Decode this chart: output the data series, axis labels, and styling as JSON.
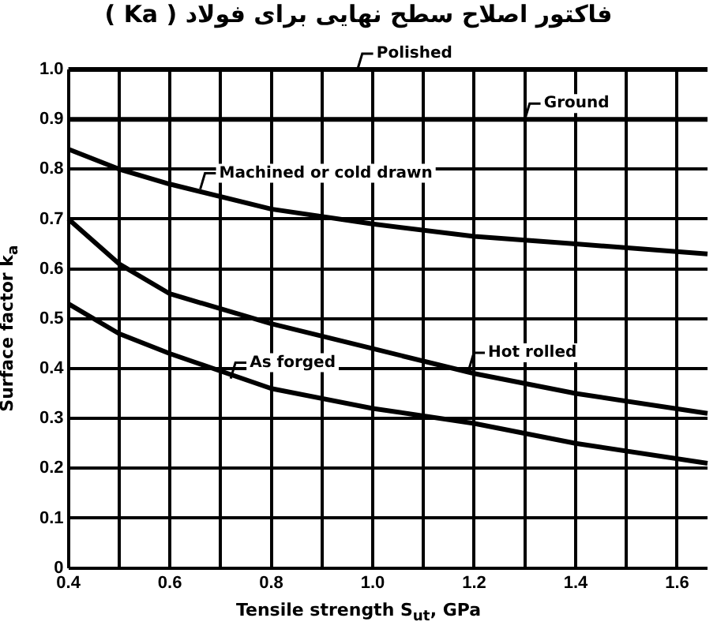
{
  "chart_data": {
    "type": "line",
    "title": "فاکتور اصلاح سطح نهایی برای فولاد ( Ka )",
    "xlabel": "Tensile strength S$_{ut}$, GPa",
    "ylabel": "Surface factor k$_{a}$",
    "series": [
      {
        "color": "#000000",
        "x": [
          0.4,
          1.66
        ],
        "values": [
          1.0,
          1.0
        ]
      },
      {
        "color": "#000000",
        "x": [
          0.4,
          1.66
        ],
        "values": [
          0.9,
          0.9
        ]
      },
      {
        "color": "#000000",
        "x": [
          0.4,
          0.5,
          0.6,
          0.8,
          1.0,
          1.2,
          1.4,
          1.66
        ],
        "values": [
          0.84,
          0.8,
          0.77,
          0.72,
          0.69,
          0.665,
          0.65,
          0.63
        ]
      },
      {
        "color": "#000000",
        "x": [
          0.4,
          0.5,
          0.6,
          0.8,
          1.0,
          1.2,
          1.4,
          1.66
        ],
        "values": [
          0.7,
          0.61,
          0.55,
          0.49,
          0.44,
          0.39,
          0.35,
          0.31
        ]
      },
      {
        "color": "#000000",
        "x": [
          0.4,
          0.5,
          0.6,
          0.8,
          1.0,
          1.2,
          1.4,
          1.66
        ],
        "values": [
          0.53,
          0.47,
          0.43,
          0.36,
          0.32,
          0.29,
          0.25,
          0.21
        ]
      }
    ],
    "annotations": [
      {
        "text": "Polished",
        "x": 0.97,
        "y": 1.0
      },
      {
        "text": "Ground",
        "x": 1.3,
        "y": 0.9
      },
      {
        "text": "Machined or cold drawn",
        "x": 0.66,
        "y": 0.76
      },
      {
        "text": "Hot rolled",
        "x": 1.19,
        "y": 0.4
      },
      {
        "text": "As forged",
        "x": 0.72,
        "y": 0.38
      }
    ],
    "xlim": [
      0.4,
      1.66
    ],
    "xticks": [
      0.4,
      {
        "value": 0.5,
        "label": null
      },
      0.6,
      {
        "value": 0.7,
        "label": null
      },
      0.8,
      {
        "value": 0.9,
        "label": null
      },
      {
        "value": 1.0,
        "label": "1.0"
      },
      {
        "value": 1.1,
        "label": null
      },
      1.2,
      {
        "value": 1.3,
        "label": null
      },
      1.4,
      {
        "value": 1.5,
        "label": null
      },
      1.6
    ],
    "ylim": [
      0,
      1.0
    ],
    "yticks": [
      {
        "value": 0,
        "label": "0"
      },
      0.1,
      0.2,
      0.3,
      0.4,
      0.5,
      0.6,
      0.7,
      0.8,
      0.9,
      {
        "value": 1.0,
        "label": "1.0"
      }
    ],
    "grid": true,
    "legend": false,
    "marker": "none",
    "line_style": "solid"
  }
}
